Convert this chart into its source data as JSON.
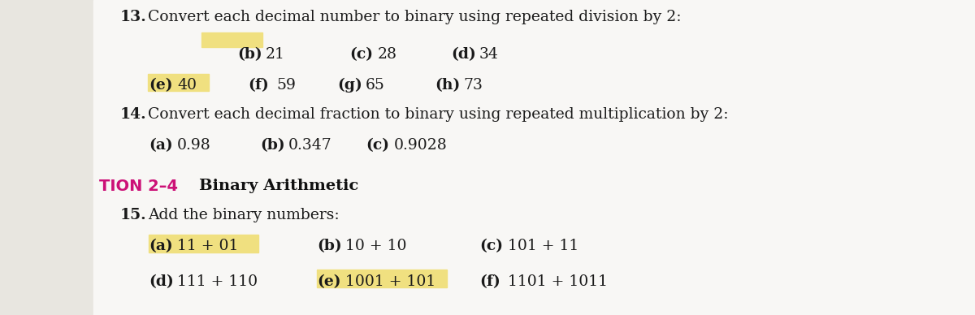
{
  "bg_color": "#e8e6e0",
  "main_bg": "#f8f7f5",
  "highlight_yellow": "#f0e080",
  "left_panel_color": "#dedad2",
  "section_color": "#cc1177",
  "text_color": "#1a1a1a",
  "bold_color": "#111111",
  "q13_number": "13.",
  "q13_text": "Convert each decimal number to binary using repeated division by 2:",
  "q13_row1": [
    [
      "(b)",
      "21"
    ],
    [
      "(c)",
      "28"
    ],
    [
      "(d)",
      "34"
    ]
  ],
  "q13_row2": [
    [
      "(e)",
      "40"
    ],
    [
      "(f)",
      "59"
    ],
    [
      "(g)",
      "65"
    ],
    [
      "(h)",
      "73"
    ]
  ],
  "q14_number": "14.",
  "q14_text": "Convert each decimal fraction to binary using repeated multiplication by 2:",
  "q14_items": [
    [
      "(a)",
      "0.98"
    ],
    [
      "(b)",
      "0.347"
    ],
    [
      "(c)",
      "0.9028"
    ]
  ],
  "section_label": "TION 2–4",
  "section_title": "Binary Arithmetic",
  "q15_number": "15.",
  "q15_text": "Add the binary numbers:",
  "q15_row1": [
    [
      "(a)",
      "11 + 01"
    ],
    [
      "(b)",
      "10 + 10"
    ],
    [
      "(c)",
      "101 + 11"
    ]
  ],
  "q15_row2": [
    [
      "(d)",
      "111 + 110"
    ],
    [
      "(e)",
      "1001 + 101"
    ],
    [
      "(f)",
      "1101 + 1011"
    ]
  ]
}
